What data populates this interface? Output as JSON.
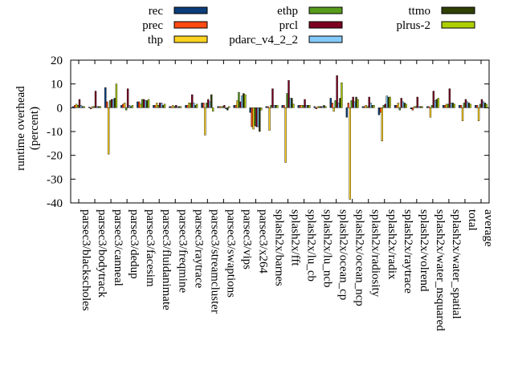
{
  "chart_data": {
    "type": "bar",
    "title": "",
    "xlabel": "",
    "ylabel": "runtime overhead\n(percent)",
    "ylim": [
      -40,
      20
    ],
    "yticks": [
      -40,
      -30,
      -20,
      -10,
      0,
      10,
      20
    ],
    "grid": false,
    "legend_position": "top",
    "categories": [
      "parsec3/blackscholes",
      "parsec3/bodytrack",
      "parsec3/canneal",
      "parsec3/dedup",
      "parsec3/facesim",
      "parsec3/fluidanimate",
      "parsec3/freqmine",
      "parsec3/raytrace",
      "parsec3/streamcluster",
      "parsec3/swaptions",
      "parsec3/vips",
      "parsec3/x264",
      "splash2x/barnes",
      "splash2x/fft",
      "splash2x/lu_cb",
      "splash2x/lu_ncb",
      "splash2x/ocean_cp",
      "splash2x/ocean_ncp",
      "splash2x/radiosity",
      "splash2x/radix",
      "splash2x/raytrace",
      "splash2x/volrend",
      "splash2x/water_nsquared",
      "splash2x/water_spatial",
      "total",
      "average"
    ],
    "series": [
      {
        "name": "rec",
        "color": "#0b3d7a",
        "values": [
          0.5,
          0.3,
          8.5,
          1.0,
          2.5,
          1.0,
          0.5,
          1.0,
          2.0,
          0.5,
          1.0,
          -2.0,
          0.5,
          1.0,
          1.0,
          0.5,
          4.0,
          -4.0,
          0.5,
          -3.0,
          1.0,
          -0.5,
          0.5,
          1.0,
          1.0,
          1.0
        ]
      },
      {
        "name": "prec",
        "color": "#ff4a12",
        "values": [
          1.0,
          -0.5,
          2.5,
          1.5,
          2.5,
          1.0,
          0.5,
          1.0,
          2.0,
          0.5,
          1.0,
          -8.0,
          0.5,
          1.0,
          1.0,
          -0.5,
          2.0,
          2.0,
          0.5,
          -2.0,
          1.0,
          -1.0,
          0.5,
          1.0,
          1.0,
          1.0
        ]
      },
      {
        "name": "thp",
        "color": "#ffd320",
        "values": [
          1.5,
          0.5,
          -19.5,
          2.0,
          1.5,
          2.0,
          1.0,
          2.0,
          -11.5,
          0.5,
          3.0,
          -9.0,
          -9.5,
          -23.0,
          1.0,
          0.5,
          -1.5,
          -38.5,
          1.0,
          -14.0,
          2.0,
          0.5,
          -4.0,
          1.5,
          -5.5,
          -5.5
        ]
      },
      {
        "name": "ethp",
        "color": "#579d1c",
        "values": [
          1.0,
          0.5,
          3.0,
          -1.0,
          3.5,
          1.0,
          0.5,
          2.0,
          2.0,
          0.5,
          6.5,
          -7.5,
          1.0,
          6.0,
          1.0,
          0.5,
          3.0,
          3.0,
          0.5,
          1.0,
          -1.0,
          0.5,
          1.0,
          1.5,
          2.0,
          1.5
        ]
      },
      {
        "name": "prcl",
        "color": "#7e0021",
        "values": [
          3.5,
          7.0,
          3.5,
          8.0,
          3.5,
          2.0,
          1.0,
          5.5,
          3.5,
          1.0,
          2.5,
          -8.0,
          8.0,
          11.5,
          3.5,
          0.5,
          13.5,
          4.5,
          4.5,
          1.5,
          4.0,
          4.5,
          7.0,
          8.0,
          3.5,
          3.5
        ]
      },
      {
        "name": "pdarc_v4_2_2",
        "color": "#83caff",
        "values": [
          1.0,
          0.5,
          3.5,
          1.0,
          3.0,
          2.0,
          0.5,
          2.0,
          2.5,
          -0.5,
          5.0,
          -8.0,
          1.0,
          4.0,
          1.0,
          0.5,
          2.0,
          2.5,
          2.0,
          5.0,
          2.5,
          0.5,
          3.0,
          2.0,
          2.5,
          2.5
        ]
      },
      {
        "name": "ttmo",
        "color": "#314004",
        "values": [
          0.5,
          0.5,
          4.0,
          0.5,
          3.0,
          1.0,
          0.5,
          1.0,
          5.5,
          -1.0,
          6.0,
          -10.0,
          1.0,
          4.0,
          1.0,
          1.0,
          4.0,
          4.5,
          1.0,
          4.5,
          2.0,
          0.5,
          3.5,
          2.0,
          2.0,
          2.0
        ]
      },
      {
        "name": "plrus-2",
        "color": "#aecf00",
        "values": [
          0.5,
          0.5,
          10.0,
          1.0,
          3.5,
          1.5,
          0.5,
          1.5,
          -1.5,
          0.5,
          5.5,
          -1.0,
          1.0,
          1.5,
          1.0,
          0.5,
          10.5,
          3.5,
          1.0,
          4.5,
          1.5,
          0.5,
          4.0,
          1.5,
          1.5,
          1.5
        ]
      }
    ]
  }
}
